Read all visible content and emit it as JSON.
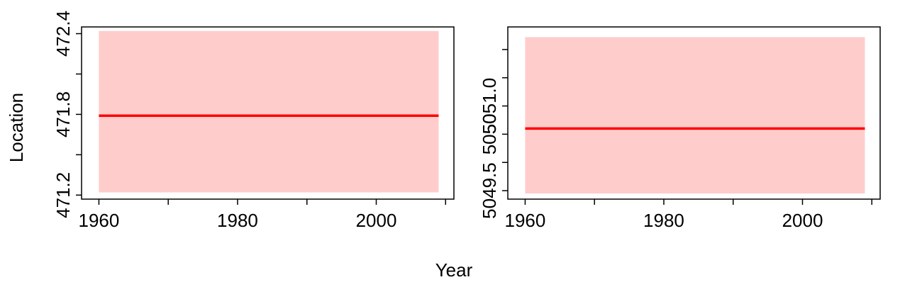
{
  "shared_xlabel": "Year",
  "shared_ylabel": "Location",
  "chart_data": [
    {
      "type": "line",
      "title": "",
      "xlabel": "Year",
      "ylabel": "Location",
      "xlim": [
        1957.5,
        2011.2
      ],
      "ylim": [
        471.17,
        472.45
      ],
      "x_ticks": [
        1960,
        1970,
        1980,
        1990,
        2000,
        2010
      ],
      "x_tick_labels": [
        "1960",
        "",
        "1980",
        "",
        "2000",
        ""
      ],
      "y_ticks": [
        471.2,
        471.5,
        471.8,
        472.1,
        472.4
      ],
      "y_tick_labels": [
        "471.2",
        "",
        "471.8",
        "",
        "472.4"
      ],
      "band": {
        "x": [
          1960,
          2009
        ],
        "lower": 471.22,
        "upper": 472.42,
        "color": "#ffcccc"
      },
      "series": [
        {
          "x": [
            1960,
            2009
          ],
          "values": [
            471.79,
            471.79
          ],
          "color": "#ff0000"
        }
      ],
      "grid": false
    },
    {
      "type": "line",
      "title": "",
      "xlabel": "Year",
      "ylabel": "",
      "xlim": [
        1957.5,
        2011.2
      ],
      "ylim": [
        5049.35,
        5052.4
      ],
      "x_ticks": [
        1960,
        1970,
        1980,
        1990,
        2000,
        2010
      ],
      "x_tick_labels": [
        "1960",
        "",
        "1980",
        "",
        "2000",
        ""
      ],
      "y_ticks": [
        5049.5,
        5050.0,
        5050.5,
        5051.0,
        5051.5,
        5052.0
      ],
      "y_tick_labels": [
        "5049.5",
        "",
        "5050",
        "5051.0",
        "",
        ""
      ],
      "band": {
        "x": [
          1960,
          2009
        ],
        "lower": 5049.45,
        "upper": 5052.22,
        "color": "#ffcccc"
      },
      "series": [
        {
          "x": [
            1960,
            2009
          ],
          "values": [
            5050.6,
            5050.6
          ],
          "color": "#ff0000"
        }
      ],
      "grid": false
    }
  ]
}
